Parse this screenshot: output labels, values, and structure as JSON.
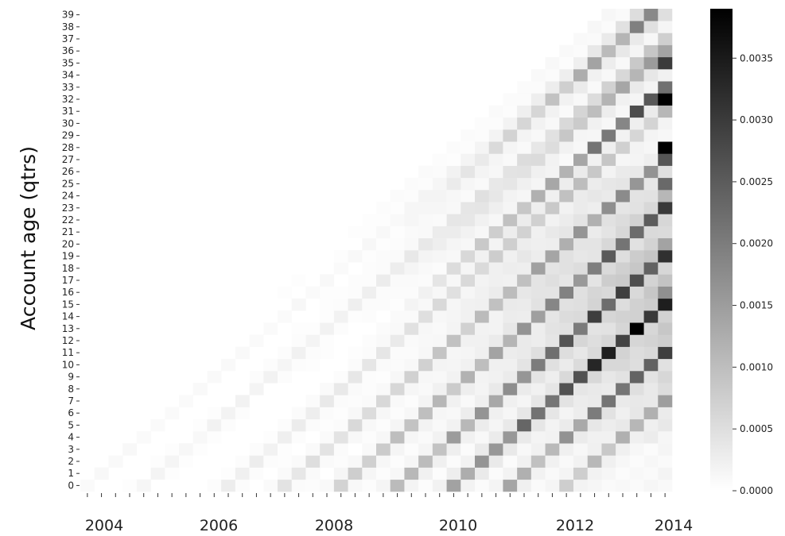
{
  "chart_data": {
    "type": "heatmap",
    "title": "",
    "xlabel": "",
    "ylabel": "Account age (qtrs)",
    "x_range_quarters": [
      "2003Q4",
      "2014Q2"
    ],
    "x_tick_labels": [
      "2004",
      "2006",
      "2008",
      "2010",
      "2012",
      "2014"
    ],
    "y_range": [
      0,
      39
    ],
    "y_tick_labels": [
      "0",
      "1",
      "2",
      "3",
      "4",
      "5",
      "6",
      "7",
      "8",
      "9",
      "10",
      "11",
      "12",
      "13",
      "14",
      "15",
      "16",
      "17",
      "18",
      "19",
      "20",
      "21",
      "22",
      "23",
      "24",
      "25",
      "26",
      "27",
      "28",
      "29",
      "30",
      "31",
      "32",
      "33",
      "34",
      "35",
      "36",
      "37",
      "38",
      "39"
    ],
    "colorbar": {
      "range": [
        0,
        0.0039
      ],
      "tick_labels": [
        "0.0000",
        "0.0005",
        "0.0010",
        "0.0015",
        "0.0020",
        "0.0025",
        "0.0030",
        "0.0035"
      ],
      "colormap": "white-to-black"
    },
    "description_of_cells": "Value is nonzero only where account age <= quarters since origin; darkest diagonals near 2013-2014 with maxima about 0.0039 at ages 28 and 32"
  }
}
